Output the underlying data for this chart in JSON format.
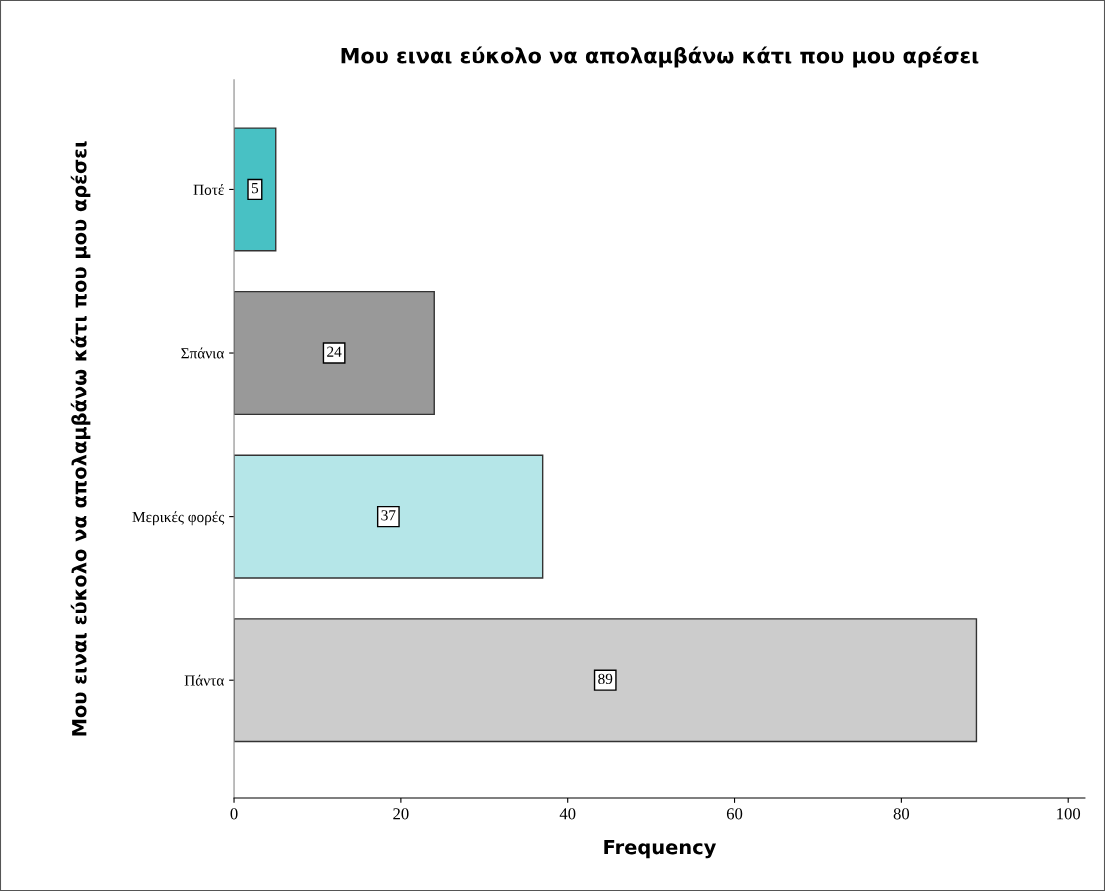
{
  "chart_data": {
    "type": "bar",
    "orientation": "horizontal",
    "title": "Μου ειναι εύκολο να απολαμβάνω κάτι που μου αρέσει",
    "ylabel": "Μου ειναι εύκολο να απολαμβάνω κάτι που μου αρέσει",
    "xlabel": "Frequency",
    "categories": [
      "Ποτέ",
      "Σπάνια",
      "Μερικές φορές",
      "Πάντα"
    ],
    "values": [
      5,
      24,
      37,
      89
    ],
    "colors": [
      "#48c1c4",
      "#999999",
      "#b5e6e8",
      "#cccccc"
    ],
    "xlim": [
      0,
      102
    ],
    "xticks": [
      0,
      20,
      40,
      60,
      80,
      100
    ],
    "grid": false,
    "legend": false,
    "data_labels": true
  }
}
